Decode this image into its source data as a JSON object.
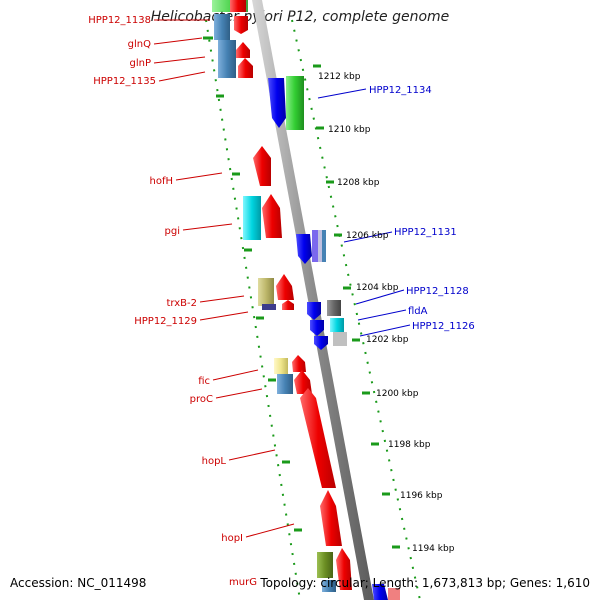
{
  "title": "Helicobacter pylori P12, complete genome",
  "accession_label": "Accession: NC_011498",
  "summary_label": "Topology: circular; Length: 1,673,813 bp; Genes: 1,610",
  "ticks": [
    "1212 kbp",
    "1210 kbp",
    "1208 kbp",
    "1206 kbp",
    "1204 kbp",
    "1202 kbp",
    "1200 kbp",
    "1198 kbp",
    "1196 kbp",
    "1194 kbp"
  ],
  "left_genes": [
    {
      "label": "HPP12_1138",
      "color": "#cc0000"
    },
    {
      "label": "glnQ",
      "color": "#ee0000"
    },
    {
      "label": "glnP",
      "color": "#ee0000"
    },
    {
      "label": "HPP12_1135",
      "color": "#4682b4"
    },
    {
      "label": "hofH",
      "color": "#ee0000"
    },
    {
      "label": "pgi",
      "color": "#00bcd4"
    },
    {
      "label": "trxB-2",
      "color": "#bdb76b"
    },
    {
      "label": "HPP12_1129",
      "color": "#3c3c8c"
    },
    {
      "label": "fic",
      "color": "#f0e68c"
    },
    {
      "label": "proC",
      "color": "#4682b4"
    },
    {
      "label": "hopL",
      "color": "#ee0000"
    },
    {
      "label": "hopI",
      "color": "#ee0000"
    },
    {
      "label": "murG",
      "color": "#6b8e23"
    }
  ],
  "right_genes": [
    {
      "label": "HPP12_1134",
      "color": "#0000ee"
    },
    {
      "label": "HPP12_1131",
      "color": "#7b68ee"
    },
    {
      "label": "HPP12_1128",
      "color": "#0000ee"
    },
    {
      "label": "fldA",
      "color": "#00e5ee"
    },
    {
      "label": "HPP12_1126",
      "color": "#00e5ee"
    }
  ]
}
